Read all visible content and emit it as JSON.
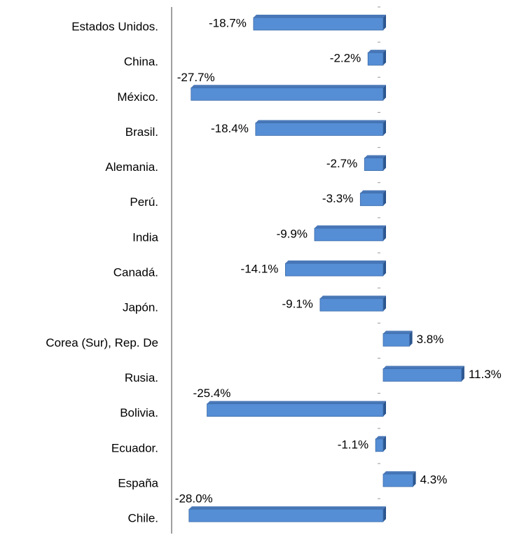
{
  "chart_data": {
    "type": "bar",
    "orientation": "horizontal",
    "categories": [
      "Estados Unidos.",
      "China.",
      "México.",
      "Brasil.",
      "Alemania.",
      "Perú.",
      "India",
      "Canadá.",
      "Japón.",
      "Corea (Sur), Rep. De",
      "Rusia.",
      "Bolivia.",
      "Ecuador.",
      "España",
      "Chile."
    ],
    "values": [
      -18.7,
      -2.2,
      -27.7,
      -18.4,
      -2.7,
      -3.3,
      -9.9,
      -14.1,
      -9.1,
      3.8,
      11.3,
      -25.4,
      -1.1,
      4.3,
      -28.0
    ],
    "value_labels": [
      "-18.7%",
      "-2.2%",
      "-27.7%",
      "-18.4%",
      "-2.7%",
      "-3.3%",
      "-9.9%",
      "-14.1%",
      "-9.1%",
      "3.8%",
      "11.3%",
      "-25.4%",
      "-1.1%",
      "4.3%",
      "-28.0%"
    ],
    "color": "#558ed5",
    "xlim": [
      -30,
      15
    ]
  }
}
